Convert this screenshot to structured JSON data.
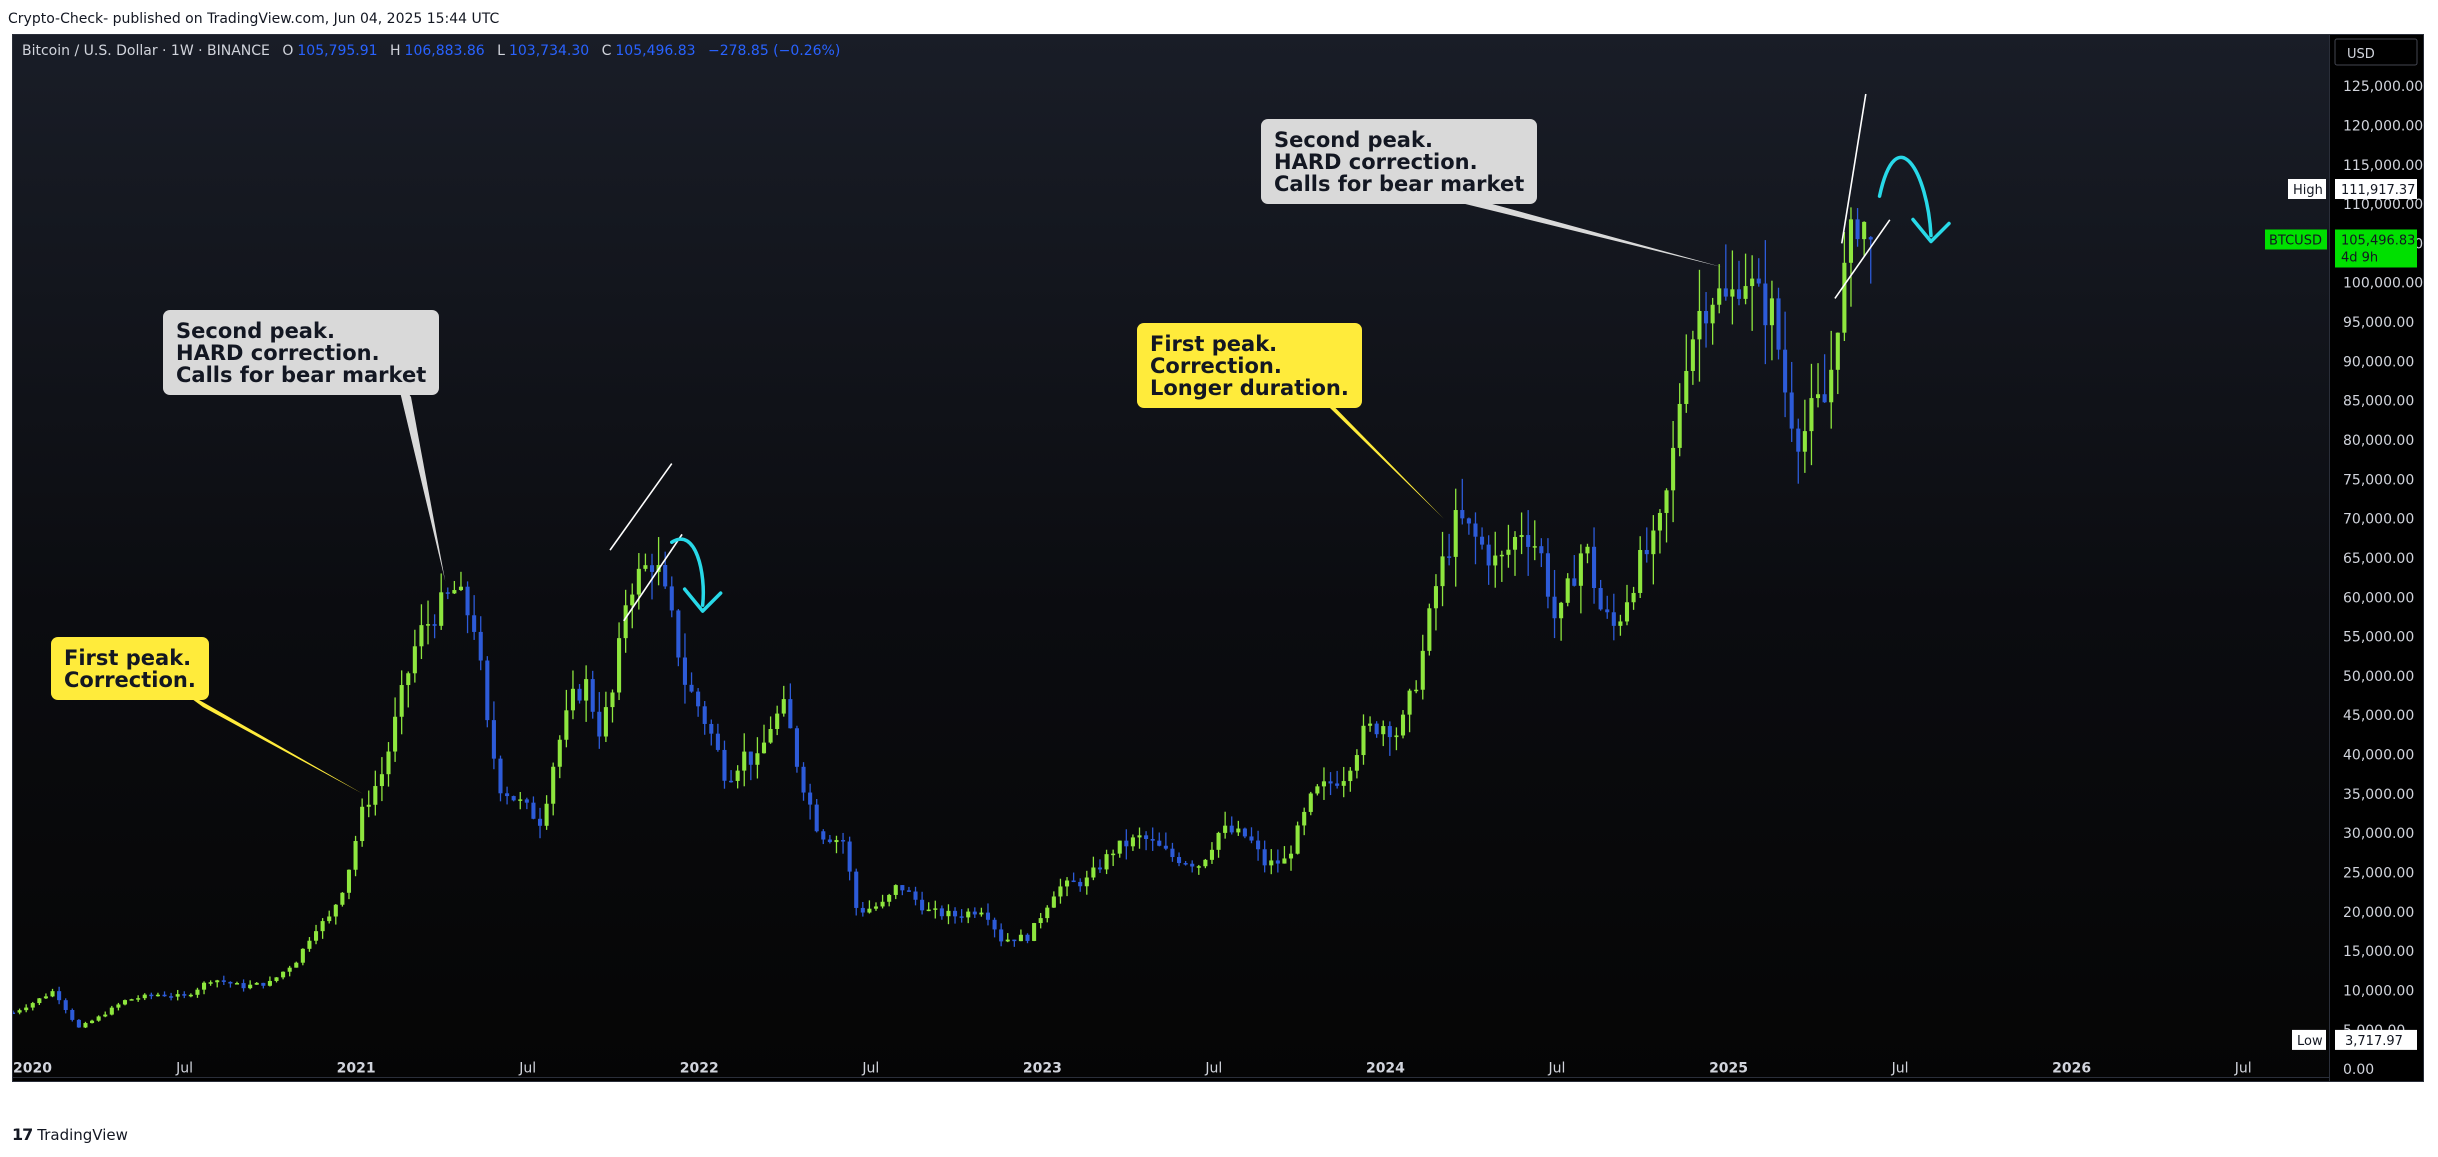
{
  "page": {
    "header": "Crypto-Check- published on TradingView.com, Jun 04, 2025 15:44 UTC",
    "footer_brand": "TradingView"
  },
  "legend": {
    "symbol": "Bitcoin / U.S. Dollar · 1W · BINANCE",
    "o_label": "O",
    "o_value": "105,795.91",
    "h_label": "H",
    "h_value": "106,883.86",
    "l_label": "L",
    "l_value": "103,734.30",
    "c_label": "C",
    "c_value": "105,496.83",
    "change": "−278.85 (−0.26%)"
  },
  "price_axis": {
    "currency": "USD",
    "high_label": "High",
    "high_value": "111,917.37",
    "low_label": "Low",
    "low_value": "3,717.97",
    "last_symbol": "BTCUSD",
    "last_value": "105,496.83",
    "countdown": "4d 9h"
  },
  "annotations": [
    {
      "id": "first-peak-correction",
      "style": "yellow",
      "lines": [
        "First peak.",
        "Correction."
      ]
    },
    {
      "id": "second-peak-2021",
      "style": "gray",
      "lines": [
        "Second peak.",
        "HARD correction.",
        "Calls for bear market"
      ]
    },
    {
      "id": "first-peak-2024",
      "style": "yellow",
      "lines": [
        "First peak.",
        "Correction.",
        "Longer duration."
      ]
    },
    {
      "id": "second-peak-2025",
      "style": "gray",
      "lines": [
        "Second peak.",
        "HARD correction.",
        "Calls for bear market"
      ]
    }
  ],
  "colors": {
    "up": "#8ee63e",
    "down": "#2d5bd8",
    "arrow": "#28d9e8",
    "last_badge": "#00e000",
    "background": "#0b0c10"
  },
  "chart_data": {
    "type": "candlestick",
    "interval": "1W",
    "exchange": "BINANCE",
    "yticks": [
      0,
      5000,
      10000,
      15000,
      20000,
      25000,
      30000,
      35000,
      40000,
      45000,
      50000,
      55000,
      60000,
      65000,
      70000,
      75000,
      80000,
      85000,
      90000,
      95000,
      100000,
      105000,
      110000,
      115000,
      120000,
      125000
    ],
    "ytick_labels": [
      "0.00",
      "5,000.00",
      "10,000.00",
      "15,000.00",
      "20,000.00",
      "25,000.00",
      "30,000.00",
      "35,000.00",
      "40,000.00",
      "45,000.00",
      "50,000.00",
      "55,000.00",
      "60,000.00",
      "65,000.00",
      "70,000.00",
      "75,000.00",
      "80,000.00",
      "85,000.00",
      "90,000.00",
      "95,000.00",
      "100,000.00",
      "105,000.00",
      "110,000.00",
      "115,000.00",
      "120,000.00",
      "125,000.00"
    ],
    "ylim": [
      -1000,
      131500
    ],
    "xlim": [
      2020.0,
      2026.75
    ],
    "xticks": [
      {
        "t": 2020.0,
        "label": "2020",
        "bold": true
      },
      {
        "t": 2020.5,
        "label": "Jul",
        "bold": false
      },
      {
        "t": 2021.0,
        "label": "2021",
        "bold": true
      },
      {
        "t": 2021.5,
        "label": "Jul",
        "bold": false
      },
      {
        "t": 2022.0,
        "label": "2022",
        "bold": true
      },
      {
        "t": 2022.5,
        "label": "Jul",
        "bold": false
      },
      {
        "t": 2023.0,
        "label": "2023",
        "bold": true
      },
      {
        "t": 2023.5,
        "label": "Jul",
        "bold": false
      },
      {
        "t": 2024.0,
        "label": "2024",
        "bold": true
      },
      {
        "t": 2024.5,
        "label": "Jul",
        "bold": false
      },
      {
        "t": 2025.0,
        "label": "2025",
        "bold": true
      },
      {
        "t": 2025.5,
        "label": "Jul",
        "bold": false
      },
      {
        "t": 2026.0,
        "label": "2026",
        "bold": true
      },
      {
        "t": 2026.5,
        "label": "Jul",
        "bold": false
      }
    ],
    "price_path": [
      [
        2020.0,
        7200
      ],
      [
        2020.06,
        8500
      ],
      [
        2020.12,
        10000
      ],
      [
        2020.19,
        5200
      ],
      [
        2020.25,
        6600
      ],
      [
        2020.33,
        8800
      ],
      [
        2020.42,
        9500
      ],
      [
        2020.5,
        9200
      ],
      [
        2020.58,
        11500
      ],
      [
        2020.67,
        10500
      ],
      [
        2020.75,
        11000
      ],
      [
        2020.83,
        14000
      ],
      [
        2020.88,
        18000
      ],
      [
        2020.92,
        19000
      ],
      [
        2020.97,
        24000
      ],
      [
        2021.02,
        33000
      ],
      [
        2021.08,
        38000
      ],
      [
        2021.13,
        47000
      ],
      [
        2021.18,
        55000
      ],
      [
        2021.23,
        58000
      ],
      [
        2021.29,
        61000
      ],
      [
        2021.35,
        56000
      ],
      [
        2021.38,
        44000
      ],
      [
        2021.42,
        36000
      ],
      [
        2021.5,
        33000
      ],
      [
        2021.54,
        31500
      ],
      [
        2021.58,
        40000
      ],
      [
        2021.63,
        47000
      ],
      [
        2021.67,
        49000
      ],
      [
        2021.71,
        43000
      ],
      [
        2021.75,
        48000
      ],
      [
        2021.79,
        61000
      ],
      [
        2021.83,
        63000
      ],
      [
        2021.87,
        65000
      ],
      [
        2021.92,
        57000
      ],
      [
        2021.96,
        49000
      ],
      [
        2022.0,
        46000
      ],
      [
        2022.04,
        42000
      ],
      [
        2022.08,
        37000
      ],
      [
        2022.13,
        40000
      ],
      [
        2022.17,
        39000
      ],
      [
        2022.21,
        44000
      ],
      [
        2022.25,
        46000
      ],
      [
        2022.29,
        38000
      ],
      [
        2022.35,
        30000
      ],
      [
        2022.42,
        29000
      ],
      [
        2022.46,
        20000
      ],
      [
        2022.54,
        21000
      ],
      [
        2022.58,
        23500
      ],
      [
        2022.67,
        20000
      ],
      [
        2022.75,
        19500
      ],
      [
        2022.83,
        20500
      ],
      [
        2022.88,
        16500
      ],
      [
        2022.96,
        16800
      ],
      [
        2023.04,
        23000
      ],
      [
        2023.13,
        24000
      ],
      [
        2023.21,
        28000
      ],
      [
        2023.29,
        29500
      ],
      [
        2023.38,
        27000
      ],
      [
        2023.46,
        26000
      ],
      [
        2023.52,
        30500
      ],
      [
        2023.6,
        29500
      ],
      [
        2023.65,
        26000
      ],
      [
        2023.71,
        26500
      ],
      [
        2023.79,
        35000
      ],
      [
        2023.88,
        37500
      ],
      [
        2023.94,
        43000
      ],
      [
        2024.0,
        44000
      ],
      [
        2024.04,
        42500
      ],
      [
        2024.1,
        51000
      ],
      [
        2024.15,
        62000
      ],
      [
        2024.21,
        70000
      ],
      [
        2024.25,
        68000
      ],
      [
        2024.33,
        64000
      ],
      [
        2024.4,
        69000
      ],
      [
        2024.45,
        66000
      ],
      [
        2024.5,
        56000
      ],
      [
        2024.54,
        62000
      ],
      [
        2024.58,
        67000
      ],
      [
        2024.63,
        58000
      ],
      [
        2024.67,
        56000
      ],
      [
        2024.71,
        61000
      ],
      [
        2024.75,
        65000
      ],
      [
        2024.79,
        67000
      ],
      [
        2024.83,
        75000
      ],
      [
        2024.87,
        90000
      ],
      [
        2024.92,
        97000
      ],
      [
        2024.96,
        99000
      ],
      [
        2025.0,
        97000
      ],
      [
        2025.04,
        102000
      ],
      [
        2025.08,
        98000
      ],
      [
        2025.13,
        96000
      ],
      [
        2025.17,
        85000
      ],
      [
        2025.21,
        80000
      ],
      [
        2025.25,
        84000
      ],
      [
        2025.29,
        85000
      ],
      [
        2025.31,
        94000
      ],
      [
        2025.35,
        104000
      ],
      [
        2025.38,
        109000
      ],
      [
        2025.42,
        105500
      ]
    ],
    "candle_step": 0.0192,
    "trend_lines": [
      {
        "x1": 2021.74,
        "y1": 66000,
        "x2": 2021.92,
        "y2": 77000
      },
      {
        "x1": 2021.78,
        "y1": 57000,
        "x2": 2021.95,
        "y2": 68000
      },
      {
        "x1": 2025.33,
        "y1": 105000,
        "x2": 2025.4,
        "y2": 124000
      },
      {
        "x1": 2025.31,
        "y1": 98000,
        "x2": 2025.47,
        "y2": 108000
      }
    ],
    "curved_arrows": [
      {
        "x0": 2021.92,
        "y0": 67000,
        "cx1": 2021.99,
        "cy1": 69000,
        "cx2": 2022.02,
        "cy2": 63000,
        "x1": 2022.01,
        "y1": 59000
      },
      {
        "x0": 2025.44,
        "y0": 111000,
        "cx1": 2025.49,
        "cy1": 121000,
        "cx2": 2025.58,
        "cy2": 114000,
        "x1": 2025.59,
        "y1": 106000
      }
    ],
    "pointer_targets": [
      {
        "x": 2021.02,
        "y": 35000
      },
      {
        "x": 2021.26,
        "y": 62000
      },
      {
        "x": 2024.17,
        "y": 70000
      },
      {
        "x": 2024.98,
        "y": 102000
      }
    ],
    "high": 111917.37,
    "low": 3717.97,
    "last": 105496.83
  }
}
